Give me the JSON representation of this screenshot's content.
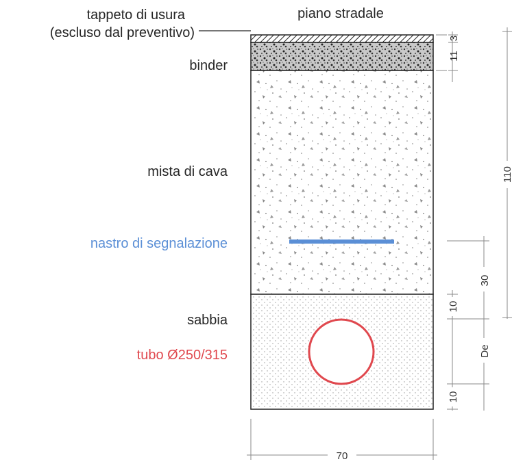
{
  "labels": {
    "wear_layer_line1": "tappeto di usura",
    "wear_layer_line2": "(escluso dal preventivo)",
    "road_surface": "piano stradale",
    "binder": "binder",
    "quarry_mix": "mista di cava",
    "warning_tape": "nastro di segnalazione",
    "sand": "sabbia",
    "pipe": "tubo Ø250/315"
  },
  "dimensions": {
    "wear_layer": "3",
    "binder": "11",
    "total_depth": "110",
    "tape_to_sand": "30",
    "sand_top": "10",
    "pipe_diameter": "De",
    "sand_bottom": "10",
    "trench_width": "70"
  },
  "colors": {
    "tape": "#5b8fd6",
    "pipe": "#e0484e",
    "text": "#262626",
    "dimension_line": "#888888"
  }
}
